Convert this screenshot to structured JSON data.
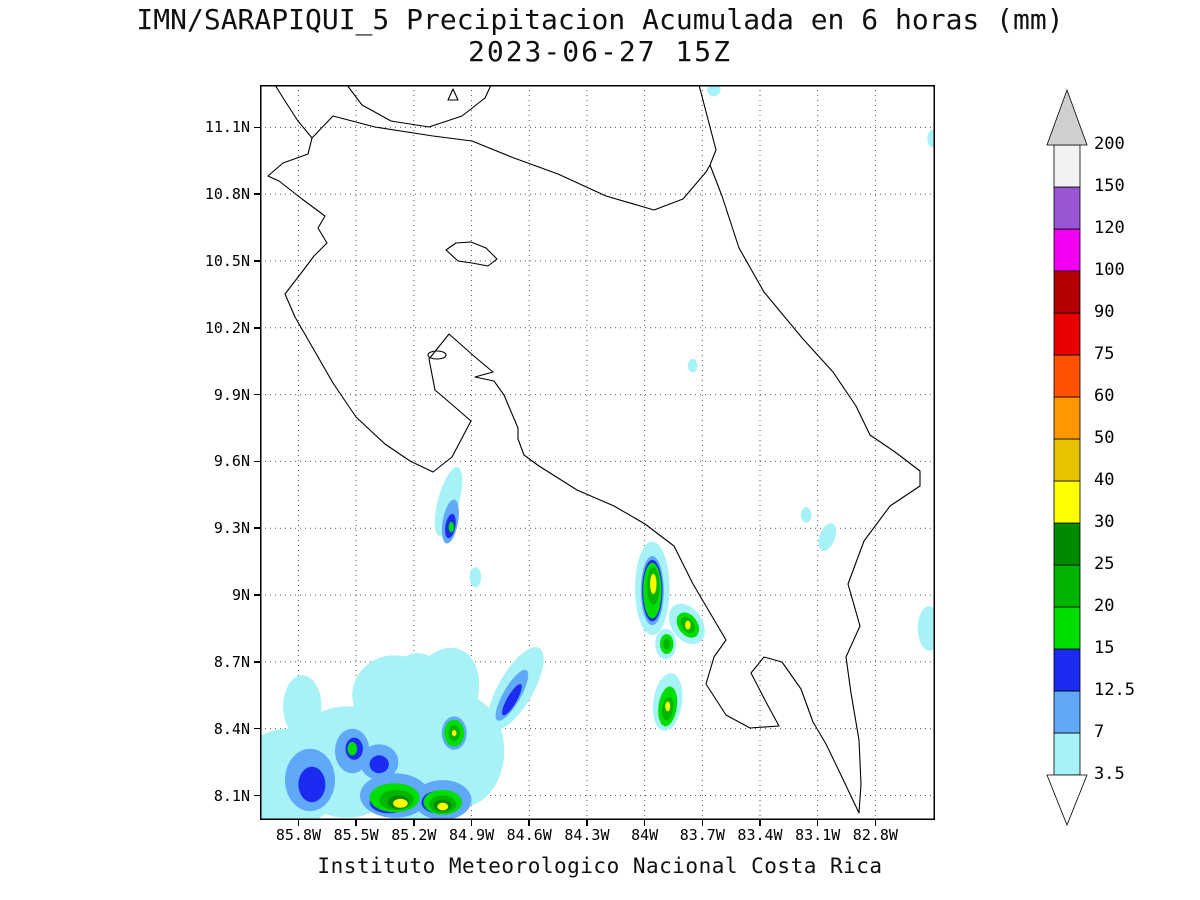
{
  "title": {
    "line1": "IMN/SARAPIQUI_5 Precipitacion Acumulada en 6 horas (mm)",
    "line2": "2023-06-27 15Z"
  },
  "footer": "Instituto Meteorologico Nacional Costa Rica",
  "chart_data": {
    "type": "heatmap",
    "title": "IMN/SARAPIQUI_5 Precipitacion Acumulada en 6 horas (mm)",
    "subtitle": "2023-06-27 15Z",
    "units": "mm",
    "region": "Costa Rica",
    "grid": "dotted",
    "extent": {
      "lon_left_w": 86.0,
      "lon_right_w": 82.49,
      "lat_top_n": 11.29,
      "lat_bottom_n": 7.99
    },
    "x_axis": {
      "tick_values": [
        85.8,
        85.5,
        85.2,
        84.9,
        84.6,
        84.3,
        84.0,
        83.7,
        83.4,
        83.1,
        82.8
      ],
      "tick_labels": [
        "85.8W",
        "85.5W",
        "85.2W",
        "84.9W",
        "84.6W",
        "84.3W",
        "84W",
        "83.7W",
        "83.4W",
        "83.1W",
        "82.8W"
      ]
    },
    "y_axis": {
      "tick_values": [
        11.1,
        10.8,
        10.5,
        10.2,
        9.9,
        9.6,
        9.3,
        9.0,
        8.7,
        8.4,
        8.1
      ],
      "tick_labels": [
        "11.1N",
        "10.8N",
        "10.5N",
        "10.2N",
        "9.9N",
        "9.6N",
        "9.3N",
        "9N",
        "8.7N",
        "8.4N",
        "8.1N"
      ]
    },
    "colorbar": {
      "position": "right",
      "levels": [
        3.5,
        7,
        12.5,
        15,
        20,
        25,
        30,
        40,
        50,
        60,
        75,
        90,
        100,
        120,
        150,
        200
      ],
      "colors": [
        "#A6F2F7",
        "#5FA9F8",
        "#1B2BF0",
        "#00DE00",
        "#00B400",
        "#008A00",
        "#FFFF00",
        "#E6C400",
        "#FF9800",
        "#FF5200",
        "#E80000",
        "#B40000",
        "#F200F2",
        "#9955D4",
        "#F2F2F2"
      ],
      "under_color": "#FFFFFF",
      "over_color": "#CFCFCF"
    },
    "precip_features_format": [
      "lon_w",
      "lat_n",
      "rx_deg",
      "ry_deg",
      "rot_deg",
      "level_mm"
    ],
    "precip_features": [
      [
        85.02,
        9.42,
        0.055,
        0.16,
        15,
        3.5
      ],
      [
        84.88,
        9.08,
        0.03,
        0.045,
        0,
        3.5
      ],
      [
        83.96,
        9.03,
        0.09,
        0.21,
        0,
        3.5
      ],
      [
        83.78,
        8.87,
        0.08,
        0.1,
        -35,
        3.5
      ],
      [
        83.89,
        8.78,
        0.055,
        0.068,
        0,
        3.5
      ],
      [
        83.88,
        8.52,
        0.075,
        0.13,
        8,
        3.5
      ],
      [
        83.16,
        9.36,
        0.028,
        0.035,
        0,
        3.5
      ],
      [
        83.05,
        9.26,
        0.04,
        0.065,
        20,
        3.5
      ],
      [
        82.52,
        8.85,
        0.06,
        0.1,
        0,
        3.5
      ],
      [
        83.75,
        10.03,
        0.025,
        0.03,
        0,
        3.5
      ],
      [
        83.64,
        11.27,
        0.035,
        0.03,
        0,
        3.5
      ],
      [
        82.5,
        11.05,
        0.03,
        0.04,
        0,
        3.5
      ],
      [
        85.85,
        8.18,
        0.28,
        0.22,
        0,
        3.5
      ],
      [
        85.55,
        8.25,
        0.3,
        0.25,
        0,
        3.5
      ],
      [
        85.2,
        8.2,
        0.3,
        0.22,
        0,
        3.5
      ],
      [
        84.95,
        8.3,
        0.22,
        0.25,
        0,
        3.5
      ],
      [
        85.05,
        8.55,
        0.18,
        0.22,
        20,
        3.5
      ],
      [
        85.3,
        8.55,
        0.22,
        0.18,
        0,
        3.5
      ],
      [
        85.78,
        8.5,
        0.1,
        0.14,
        0,
        3.5
      ],
      [
        85.18,
        8.63,
        0.12,
        0.11,
        0,
        3.5
      ],
      [
        84.67,
        8.58,
        0.09,
        0.21,
        30,
        3.5
      ],
      [
        85.01,
        9.33,
        0.04,
        0.1,
        10,
        7
      ],
      [
        83.96,
        9.02,
        0.06,
        0.155,
        0,
        7
      ],
      [
        85.74,
        8.17,
        0.13,
        0.14,
        0,
        7
      ],
      [
        85.52,
        8.3,
        0.09,
        0.1,
        0,
        7
      ],
      [
        85.38,
        8.25,
        0.1,
        0.08,
        0,
        7
      ],
      [
        85.3,
        8.1,
        0.18,
        0.1,
        0,
        7
      ],
      [
        85.05,
        8.08,
        0.15,
        0.09,
        0,
        7
      ],
      [
        84.69,
        8.55,
        0.045,
        0.13,
        30,
        7
      ],
      [
        84.99,
        8.38,
        0.065,
        0.075,
        0,
        7
      ],
      [
        85.01,
        9.31,
        0.026,
        0.055,
        10,
        12.5
      ],
      [
        83.96,
        9.02,
        0.053,
        0.138,
        0,
        12.5
      ],
      [
        85.73,
        8.15,
        0.07,
        0.08,
        0,
        12.5
      ],
      [
        85.51,
        8.31,
        0.045,
        0.05,
        0,
        12.5
      ],
      [
        85.38,
        8.24,
        0.05,
        0.04,
        0,
        12.5
      ],
      [
        85.33,
        8.07,
        0.1,
        0.05,
        0,
        12.5
      ],
      [
        85.08,
        8.07,
        0.08,
        0.05,
        0,
        12.5
      ],
      [
        84.69,
        8.53,
        0.025,
        0.08,
        30,
        12.5
      ],
      [
        85.005,
        9.305,
        0.014,
        0.024,
        0,
        15
      ],
      [
        83.96,
        9.02,
        0.048,
        0.125,
        0,
        15
      ],
      [
        83.775,
        8.865,
        0.05,
        0.062,
        -35,
        15
      ],
      [
        83.885,
        8.78,
        0.035,
        0.045,
        0,
        15
      ],
      [
        83.88,
        8.5,
        0.048,
        0.09,
        8,
        15
      ],
      [
        85.3,
        8.09,
        0.13,
        0.065,
        0,
        15
      ],
      [
        85.05,
        8.07,
        0.1,
        0.055,
        0,
        15
      ],
      [
        84.99,
        8.38,
        0.052,
        0.06,
        0,
        15
      ],
      [
        85.52,
        8.31,
        0.025,
        0.03,
        0,
        15
      ],
      [
        83.955,
        9.04,
        0.032,
        0.085,
        0,
        20
      ],
      [
        83.775,
        8.865,
        0.03,
        0.04,
        -35,
        20
      ],
      [
        83.885,
        8.78,
        0.018,
        0.024,
        0,
        20
      ],
      [
        83.88,
        8.49,
        0.028,
        0.052,
        8,
        20
      ],
      [
        85.29,
        8.08,
        0.09,
        0.045,
        0,
        20
      ],
      [
        85.05,
        8.06,
        0.07,
        0.04,
        0,
        20
      ],
      [
        84.99,
        8.38,
        0.03,
        0.035,
        0,
        20
      ],
      [
        85.28,
        8.07,
        0.055,
        0.03,
        0,
        25
      ],
      [
        85.05,
        8.055,
        0.045,
        0.026,
        0,
        25
      ],
      [
        83.955,
        9.05,
        0.017,
        0.045,
        0,
        30
      ],
      [
        83.775,
        8.865,
        0.014,
        0.02,
        0,
        30
      ],
      [
        83.88,
        8.5,
        0.013,
        0.022,
        0,
        30
      ],
      [
        85.27,
        8.065,
        0.038,
        0.02,
        0,
        30
      ],
      [
        85.05,
        8.05,
        0.028,
        0.017,
        0,
        30
      ],
      [
        84.99,
        8.38,
        0.012,
        0.014,
        0,
        30
      ]
    ]
  }
}
